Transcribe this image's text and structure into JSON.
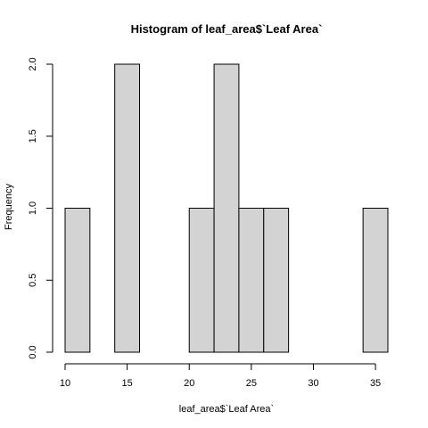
{
  "chart_data": {
    "type": "bar",
    "title": "Histogram of leaf_area$`Leaf Area`",
    "xlabel": "leaf_area$`Leaf Area`",
    "ylabel": "Frequency",
    "bins": [
      {
        "x0": 10,
        "x1": 12,
        "count": 1
      },
      {
        "x0": 12,
        "x1": 14,
        "count": 0
      },
      {
        "x0": 14,
        "x1": 16,
        "count": 2
      },
      {
        "x0": 16,
        "x1": 18,
        "count": 0
      },
      {
        "x0": 18,
        "x1": 20,
        "count": 0
      },
      {
        "x0": 20,
        "x1": 22,
        "count": 1
      },
      {
        "x0": 22,
        "x1": 24,
        "count": 2
      },
      {
        "x0": 24,
        "x1": 26,
        "count": 1
      },
      {
        "x0": 26,
        "x1": 28,
        "count": 1
      },
      {
        "x0": 28,
        "x1": 30,
        "count": 0
      },
      {
        "x0": 30,
        "x1": 32,
        "count": 0
      },
      {
        "x0": 32,
        "x1": 34,
        "count": 0
      },
      {
        "x0": 34,
        "x1": 36,
        "count": 1
      }
    ],
    "xlim": [
      10,
      36
    ],
    "ylim": [
      0,
      2
    ],
    "xticks": [
      10,
      15,
      20,
      25,
      30,
      35
    ],
    "yticks": [
      0,
      0.5,
      1,
      1.5,
      2
    ],
    "xtick_labels": [
      "10",
      "15",
      "20",
      "25",
      "30",
      "35"
    ],
    "ytick_labels": [
      "0.0",
      "0.5",
      "1.0",
      "1.5",
      "2.0"
    ],
    "grid": false,
    "colors": {
      "bar_fill": "#d3d3d3",
      "bar_stroke": "#000000"
    }
  }
}
